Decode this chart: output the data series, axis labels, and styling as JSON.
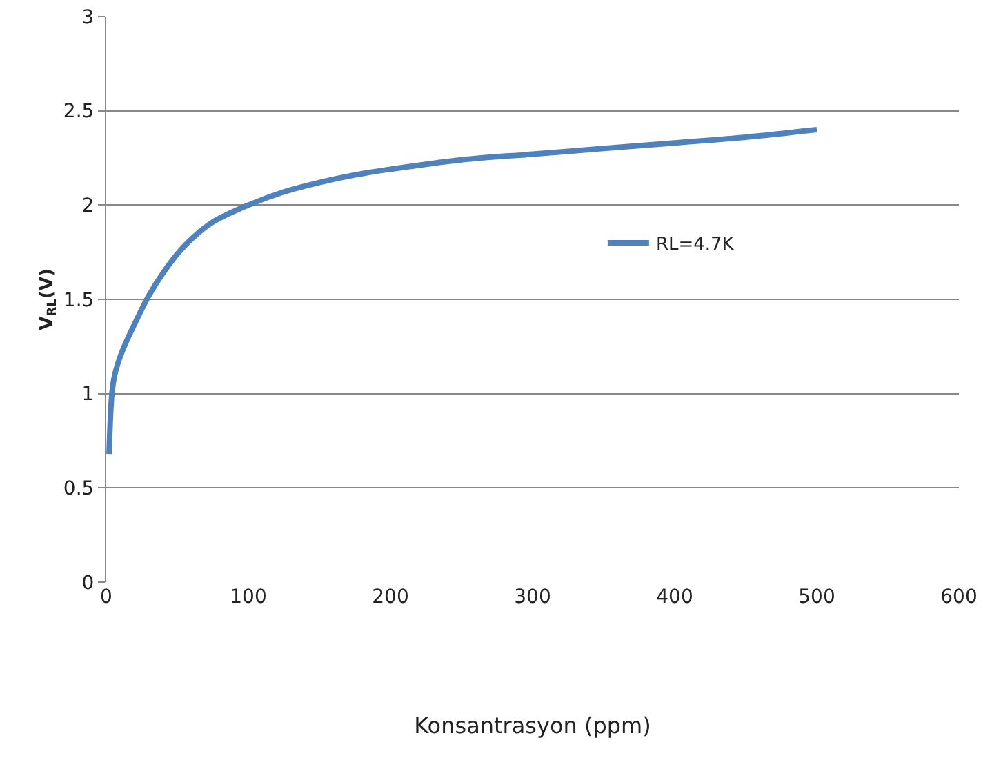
{
  "chart_data": {
    "type": "line",
    "xlabel": "Konsantrasyon (ppm)",
    "ylabel": "V$_{RL}$(V)",
    "x": [
      2,
      4,
      6,
      10,
      15,
      20,
      30,
      40,
      50,
      60,
      75,
      100,
      125,
      150,
      175,
      200,
      250,
      300,
      350,
      400,
      450,
      500
    ],
    "series": [
      {
        "name": "RL=4.7K",
        "color": "#4f81bd",
        "values": [
          0.68,
          1.0,
          1.1,
          1.2,
          1.29,
          1.37,
          1.52,
          1.64,
          1.74,
          1.82,
          1.91,
          2.0,
          2.07,
          2.12,
          2.16,
          2.19,
          2.24,
          2.27,
          2.3,
          2.33,
          2.36,
          2.4
        ]
      }
    ],
    "xlim": [
      0,
      600
    ],
    "xticks": [
      0,
      100,
      200,
      300,
      400,
      500,
      600
    ],
    "ylim": [
      0,
      3
    ],
    "yticks": [
      0,
      0.5,
      1,
      1.5,
      2,
      2.5,
      3
    ],
    "grid": "y",
    "legend": "right",
    "marker": "none",
    "line_style": "solid"
  }
}
